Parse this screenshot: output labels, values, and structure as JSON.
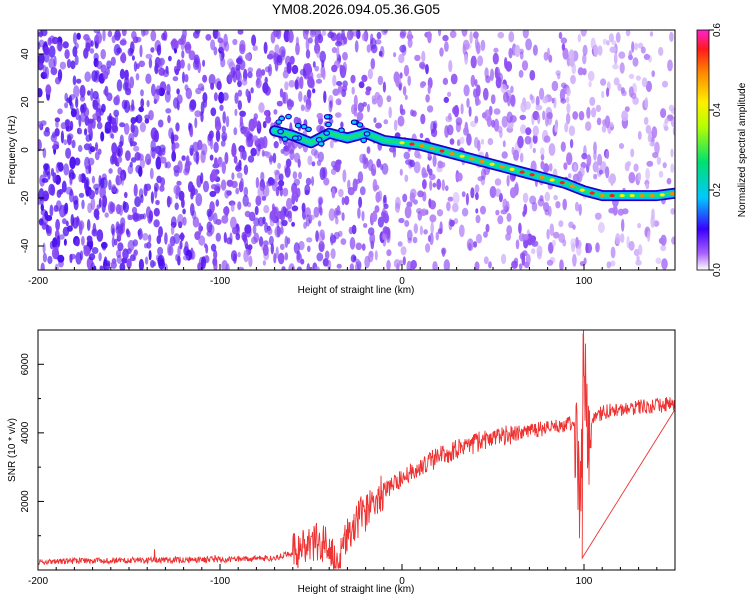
{
  "title": "YM08.2026.094.05.36.G05",
  "chart_data": [
    {
      "type": "heatmap",
      "xlabel": "Height of straight line (km)",
      "ylabel": "Frequency (Hz)",
      "xlim": [
        -200,
        150
      ],
      "ylim": [
        -50,
        50
      ],
      "xticks": [
        -200,
        -100,
        0,
        100
      ],
      "yticks": [
        -40,
        -20,
        0,
        20,
        40
      ],
      "colorbar": {
        "label": "Normalized spectral amplitude",
        "range": [
          0,
          0.6
        ],
        "ticks": [
          "0.0",
          "0.2",
          "0.4",
          "0.6"
        ]
      },
      "ridge": {
        "x": [
          -70,
          -60,
          -50,
          -40,
          -30,
          -20,
          -10,
          0,
          10,
          20,
          30,
          40,
          50,
          60,
          70,
          80,
          90,
          100,
          110,
          120,
          130,
          140,
          150
        ],
        "y": [
          8,
          6,
          3,
          7,
          5,
          7,
          4,
          3,
          2,
          0,
          -2,
          -4,
          -6,
          -8,
          -10,
          -12,
          -14,
          -17,
          -19,
          -19,
          -19,
          -19,
          -18
        ]
      }
    },
    {
      "type": "line",
      "xlabel": "Height of straight line (km)",
      "ylabel": "SNR (10 * v/v)",
      "xlim": [
        -200,
        150
      ],
      "ylim": [
        0,
        7000
      ],
      "xticks": [
        -200,
        -100,
        0,
        100
      ],
      "yticks": [
        2000,
        4000,
        6000
      ],
      "series": [
        {
          "name": "SNR",
          "color": "#ee3333",
          "x": [
            -200,
            -150,
            -110,
            -90,
            -70,
            -60,
            -50,
            -45,
            -40,
            -35,
            -30,
            -25,
            -20,
            -15,
            -10,
            0,
            10,
            20,
            30,
            40,
            50,
            60,
            70,
            80,
            90,
            95,
            98,
            100,
            102,
            105,
            110,
            120,
            130,
            140,
            150
          ],
          "y": [
            250,
            280,
            300,
            310,
            350,
            500,
            700,
            900,
            500,
            300,
            1000,
            1500,
            1600,
            1900,
            2300,
            2700,
            3000,
            3300,
            3500,
            3700,
            3850,
            3950,
            4050,
            4150,
            4250,
            4300,
            2000,
            6500,
            3800,
            4400,
            4600,
            4700,
            4750,
            4800,
            4850
          ]
        }
      ]
    }
  ]
}
